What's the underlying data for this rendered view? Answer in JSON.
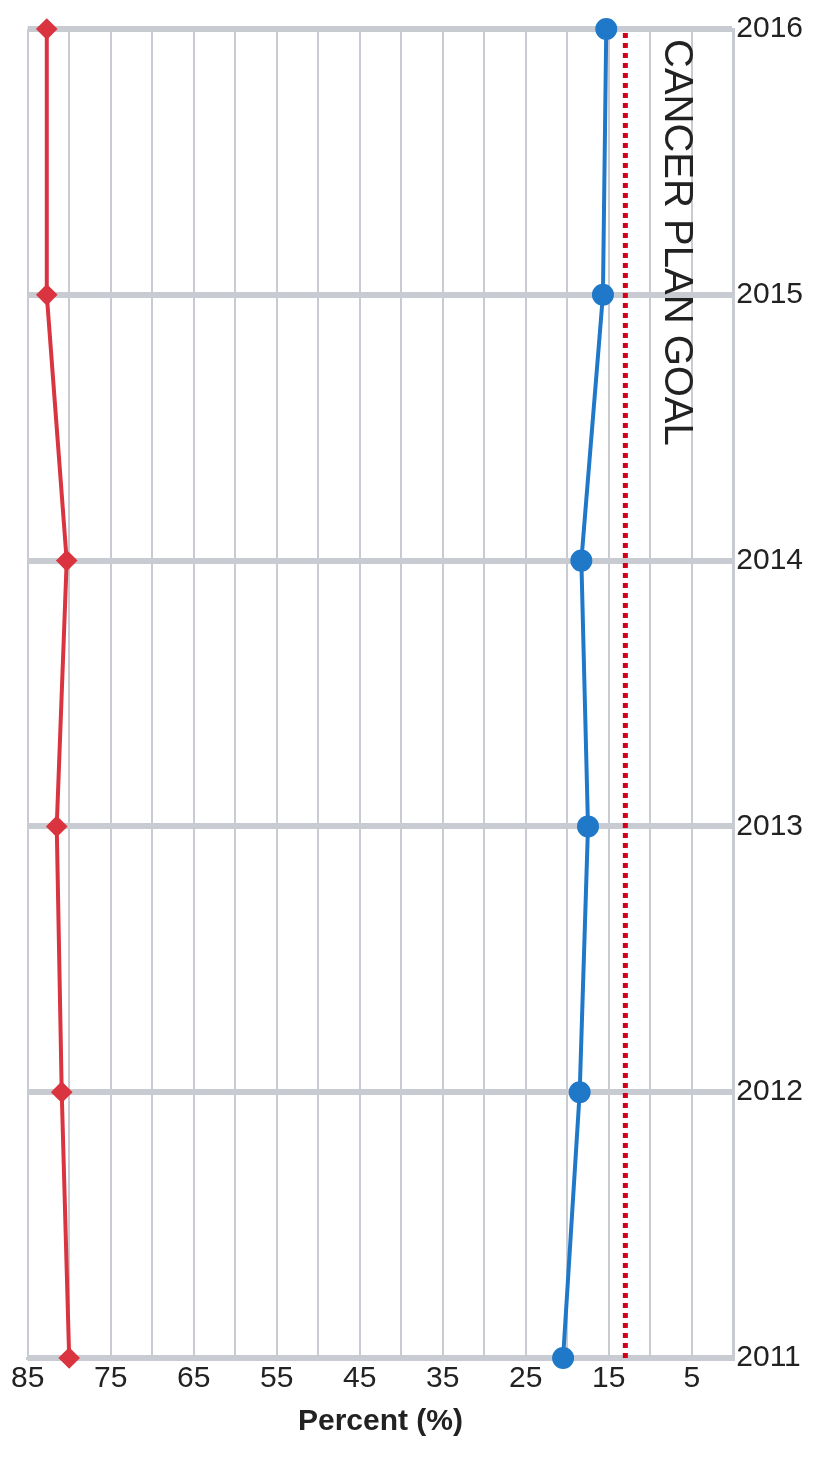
{
  "chart_data": {
    "type": "line",
    "orientation": "horizontal",
    "xlabel": "Percent (%)",
    "categories": [
      "2016",
      "2015",
      "2014",
      "2013",
      "2012",
      "2011"
    ],
    "series": [
      {
        "color": "#d9343f",
        "marker": "diamond",
        "values": [
          82.7,
          82.7,
          80.3,
          81.5,
          80.9,
          80
        ]
      },
      {
        "color": "#1f78c8",
        "marker": "circle",
        "values": [
          15.3,
          15.7,
          18.3,
          17.5,
          18.5,
          20.5
        ]
      }
    ],
    "xlim": [
      85,
      0
    ],
    "xticks": [
      85,
      {
        "value": 80,
        "label": null
      },
      75,
      {
        "value": 70,
        "label": null
      },
      65,
      {
        "value": 60,
        "label": null
      },
      55,
      {
        "value": 50,
        "label": null
      },
      45,
      {
        "value": 40,
        "label": null
      },
      35,
      {
        "value": 30,
        "label": null
      },
      25,
      {
        "value": 20,
        "label": null
      },
      15,
      {
        "value": 10,
        "label": null
      },
      5
    ],
    "ref_lines": [
      {
        "axis": "x",
        "value": 13,
        "label": "CANCER PLAN GOAL",
        "color": "#d0021b",
        "line_style": "dotted"
      }
    ],
    "grid": true,
    "legend": false
  }
}
